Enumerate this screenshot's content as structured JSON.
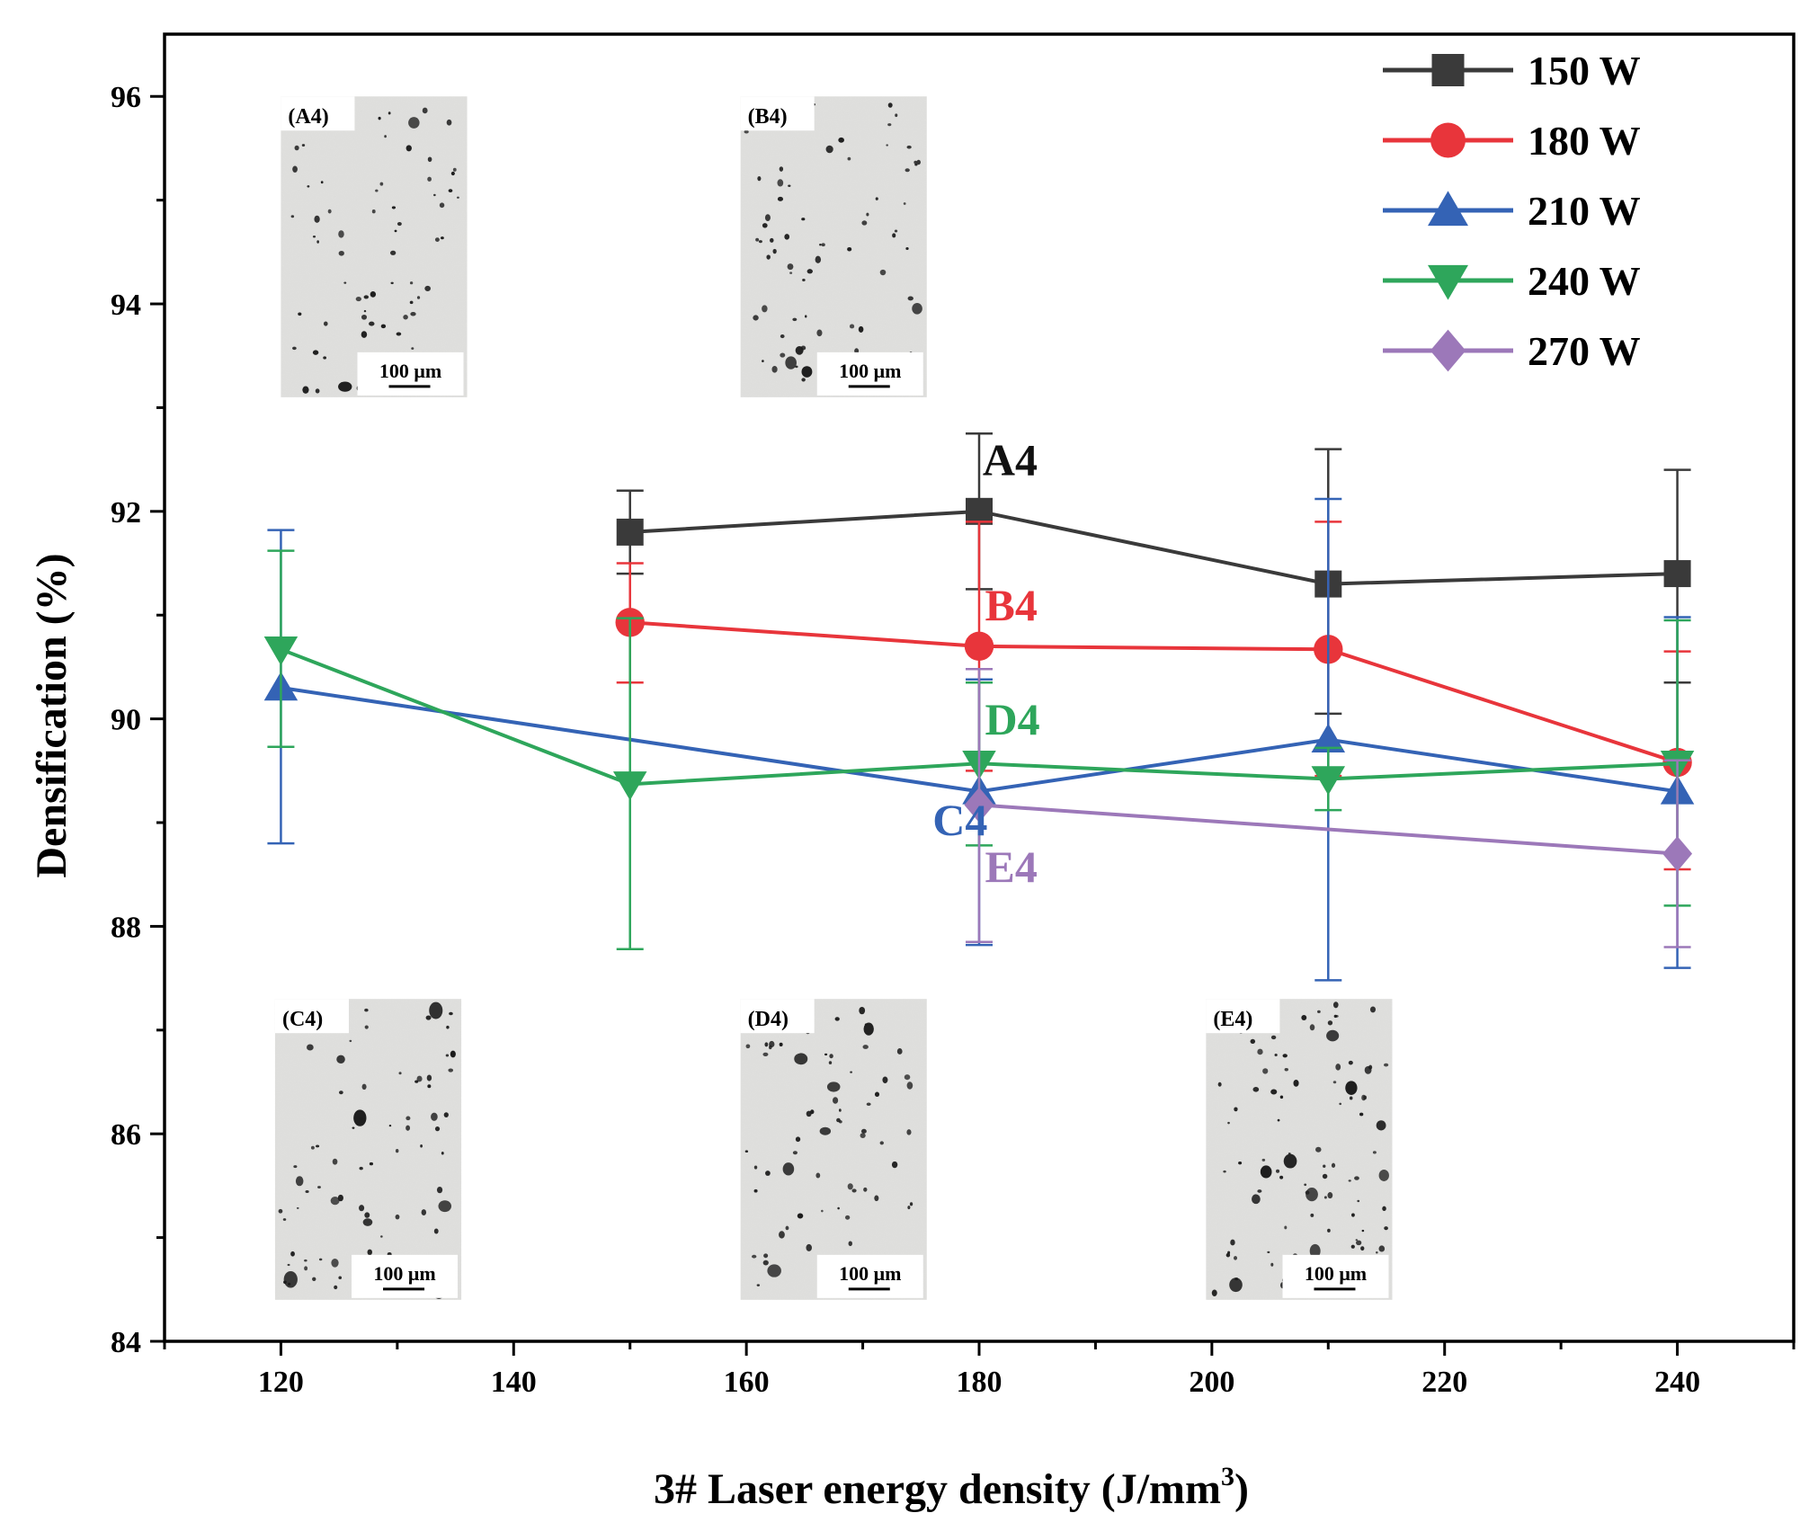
{
  "chart_data": {
    "type": "line",
    "title": "",
    "xlabel": "3# Laser energy density (J/mm",
    "xlabel_sup": "3",
    "xlabel_tail": ")",
    "ylabel": "Densification (%)",
    "xlim": [
      110,
      250
    ],
    "ylim": [
      84,
      96.6
    ],
    "xticks": [
      120,
      140,
      160,
      180,
      200,
      220,
      240
    ],
    "yticks": [
      84,
      86,
      88,
      90,
      92,
      94,
      96
    ],
    "legend_position": "top-right",
    "series": [
      {
        "name": "150 W",
        "color": "#3a3a3a",
        "marker": "square",
        "x": [
          150,
          180,
          210,
          240
        ],
        "y": [
          91.8,
          92.0,
          91.3,
          91.4
        ],
        "err_low": [
          91.4,
          91.25,
          90.05,
          90.35
        ],
        "err_high": [
          92.2,
          92.75,
          92.6,
          92.4
        ]
      },
      {
        "name": "180 W",
        "color": "#e8353b",
        "marker": "circle",
        "x": [
          150,
          180,
          210,
          240
        ],
        "y": [
          90.93,
          90.7,
          90.67,
          89.58
        ],
        "err_low": [
          90.35,
          89.5,
          89.45,
          88.55
        ],
        "err_high": [
          91.5,
          91.9,
          91.9,
          90.65
        ]
      },
      {
        "name": "210 W",
        "color": "#3463b5",
        "marker": "triangle-up",
        "x": [
          120,
          180,
          210,
          240
        ],
        "y": [
          90.3,
          89.3,
          89.8,
          89.3
        ],
        "err_low": [
          88.8,
          87.82,
          87.48,
          87.6
        ],
        "err_high": [
          91.82,
          90.38,
          92.12,
          90.98
        ]
      },
      {
        "name": "240 W",
        "color": "#2ea65b",
        "marker": "triangle-down",
        "x": [
          120,
          150,
          180,
          210,
          240
        ],
        "y": [
          90.67,
          89.37,
          89.57,
          89.42,
          89.57
        ],
        "err_low": [
          89.73,
          87.78,
          88.78,
          89.12,
          88.2
        ],
        "err_high": [
          91.62,
          90.97,
          90.35,
          89.72,
          90.95
        ]
      },
      {
        "name": "270 W",
        "color": "#9c78b9",
        "marker": "diamond",
        "x": [
          180,
          240
        ],
        "y": [
          89.17,
          88.7
        ],
        "err_low": [
          87.85,
          87.8
        ],
        "err_high": [
          90.48,
          89.6
        ]
      }
    ],
    "annotations": [
      {
        "text": "A4",
        "x": 180.3,
        "y": 92.35,
        "color": "#111111"
      },
      {
        "text": "B4",
        "x": 180.5,
        "y": 90.95,
        "color": "#e8353b"
      },
      {
        "text": "D4",
        "x": 180.5,
        "y": 89.85,
        "color": "#2ea65b"
      },
      {
        "text": "C4",
        "x": 176.0,
        "y": 88.88,
        "color": "#3463b5"
      },
      {
        "text": "E4",
        "x": 180.5,
        "y": 88.43,
        "color": "#9c78b9"
      }
    ],
    "insets": [
      {
        "label": "(A4)",
        "scale": "100 μm",
        "x_range": [
          120,
          136
        ],
        "y_range": [
          93.1,
          96.0
        ]
      },
      {
        "label": "(B4)",
        "scale": "100 μm",
        "x_range": [
          159.5,
          175.5
        ],
        "y_range": [
          93.1,
          96.0
        ]
      },
      {
        "label": "(C4)",
        "scale": "100 μm",
        "x_range": [
          119.5,
          135.5
        ],
        "y_range": [
          84.4,
          87.3
        ]
      },
      {
        "label": "(D4)",
        "scale": "100 μm",
        "x_range": [
          159.5,
          175.5
        ],
        "y_range": [
          84.4,
          87.3
        ]
      },
      {
        "label": "(E4)",
        "scale": "100 μm",
        "x_range": [
          199.5,
          215.5
        ],
        "y_range": [
          84.4,
          87.3
        ]
      }
    ]
  }
}
